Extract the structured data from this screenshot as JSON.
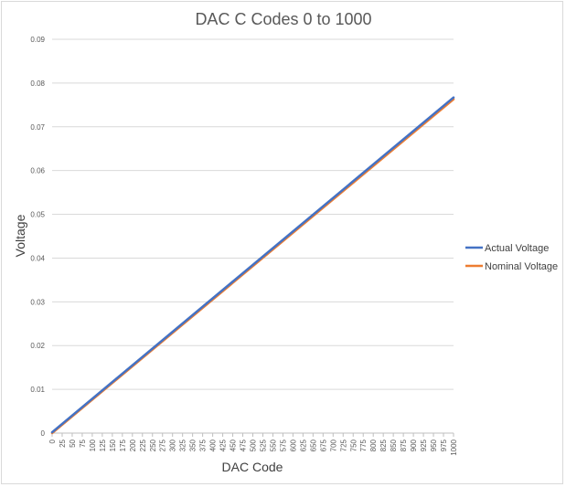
{
  "chart_data": {
    "type": "line",
    "title": "DAC C Codes 0 to 1000",
    "xlabel": "DAC Code",
    "ylabel": "Voltage",
    "categories": [
      "0",
      "25",
      "50",
      "75",
      "100",
      "125",
      "150",
      "175",
      "200",
      "225",
      "250",
      "275",
      "300",
      "325",
      "350",
      "375",
      "400",
      "425",
      "450",
      "475",
      "500",
      "525",
      "550",
      "575",
      "600",
      "625",
      "650",
      "675",
      "700",
      "725",
      "750",
      "775",
      "800",
      "825",
      "850",
      "875",
      "900",
      "925",
      "950",
      "975",
      "1000"
    ],
    "y_ticks": [
      "0",
      "0.01",
      "0.02",
      "0.03",
      "0.04",
      "0.05",
      "0.06",
      "0.07",
      "0.08",
      "0.09"
    ],
    "ylim": [
      0,
      0.09
    ],
    "grid": true,
    "legend_position": "right",
    "series": [
      {
        "name": "Actual Voltage",
        "color": "#4472c4",
        "x_range": [
          0,
          1000
        ],
        "y_range": [
          0.0002,
          0.0767
        ]
      },
      {
        "name": "Nominal Voltage",
        "color": "#ed7d31",
        "x_range": [
          0,
          1000
        ],
        "y_range": [
          0.0,
          0.0763
        ]
      }
    ]
  }
}
